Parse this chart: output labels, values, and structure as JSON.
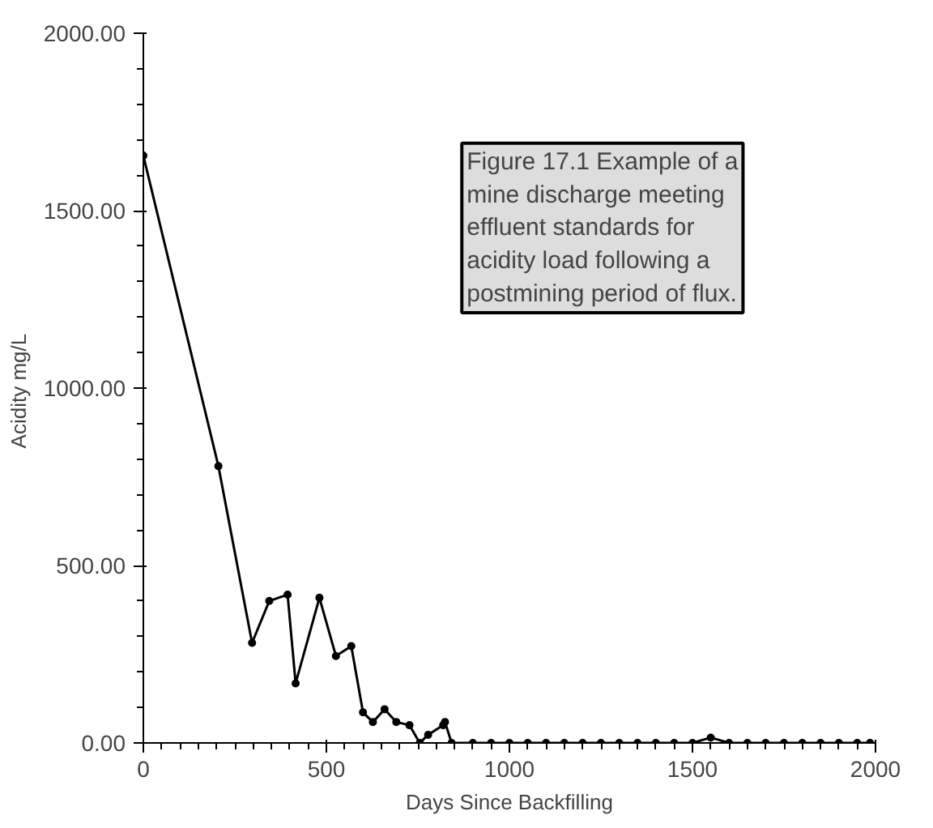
{
  "chart_data": {
    "type": "line",
    "xlabel": "Days Since Backfilling",
    "ylabel": "Acidity  mg/L",
    "annotations": [
      "Figure 17.1 Example of a mine discharge meeting effluent standards for acidity load following a postmining period of flux."
    ],
    "x": [
      0,
      205,
      297,
      344,
      394,
      416,
      481,
      526,
      568,
      600,
      627,
      659,
      691,
      727,
      755,
      778,
      819,
      824,
      842,
      900,
      950,
      1000,
      1050,
      1100,
      1150,
      1200,
      1250,
      1300,
      1350,
      1400,
      1450,
      1500,
      1550,
      1600,
      1650,
      1700,
      1750,
      1800,
      1850,
      1900,
      1950,
      1985
    ],
    "series": [
      {
        "color": "#000000",
        "values": [
          1655,
          780,
          282,
          400,
          418,
          168,
          409,
          245,
          273,
          86,
          59,
          95,
          59,
          50,
          0,
          23,
          50,
          59,
          0,
          0,
          0,
          0,
          0,
          0,
          0,
          0,
          0,
          0,
          0,
          0,
          0,
          0,
          15,
          0,
          0,
          0,
          0,
          0,
          0,
          0,
          0,
          0
        ]
      }
    ],
    "xlim": [
      0,
      2000
    ],
    "ylim": [
      0,
      2000
    ],
    "xticks": [
      0,
      500,
      1000,
      1500,
      2000
    ],
    "yticks": [
      {
        "value": 0,
        "label": "0.00"
      },
      {
        "value": 500,
        "label": "500.00"
      },
      {
        "value": 1000,
        "label": "1000.00"
      },
      {
        "value": 1500,
        "label": "1500.00"
      },
      {
        "value": 2000,
        "label": "2000.00"
      }
    ],
    "marker": "circle",
    "grid": false
  }
}
